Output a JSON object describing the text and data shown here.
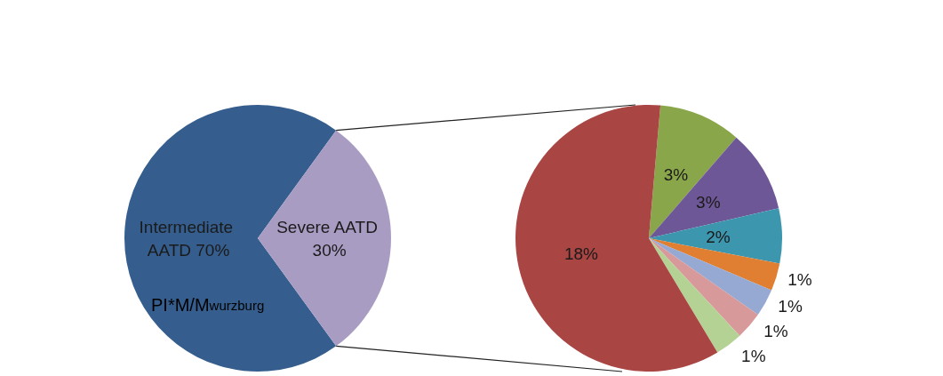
{
  "chart_data": [
    {
      "type": "pie",
      "categories": [
        "Intermediate AATD",
        "Severe AATD"
      ],
      "values": [
        70,
        30
      ],
      "value_labels": [
        "70%",
        "30%"
      ],
      "colors": [
        "#355e8e",
        "#a99cc3"
      ],
      "annotations": [
        "PI*M/M$_{wurzburg}$"
      ]
    },
    {
      "type": "pie",
      "categories": [
        null,
        null,
        null,
        null,
        null,
        null,
        null,
        null
      ],
      "values": [
        3,
        3,
        2,
        1,
        1,
        1,
        1,
        18
      ],
      "value_labels": [
        "3%",
        "3%",
        "2%",
        "1%",
        "1%",
        "1%",
        "1%",
        "18%"
      ],
      "colors": [
        "#8aa64a",
        "#6e5796",
        "#3b96ae",
        "#e07f31",
        "#95a9d3",
        "#d8999a",
        "#b5d295",
        "#a94543"
      ]
    }
  ]
}
